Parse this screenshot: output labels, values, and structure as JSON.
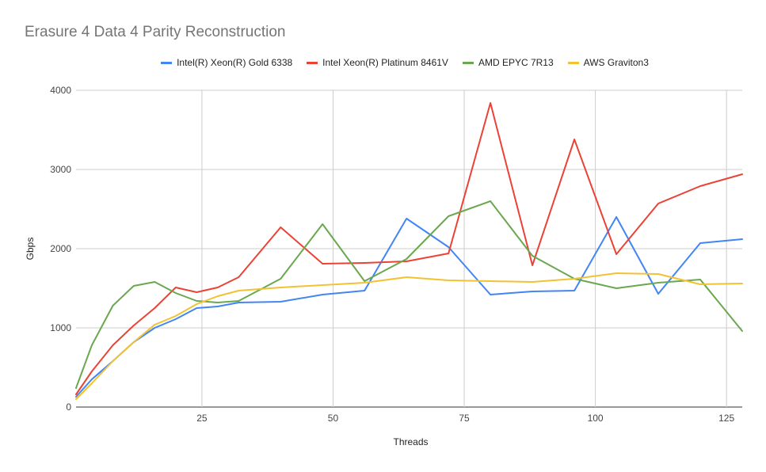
{
  "chart_data": {
    "type": "line",
    "title": "Erasure 4 Data 4 Parity Reconstruction",
    "xlabel": "Threads",
    "ylabel": "Gbps",
    "xlim": [
      1,
      128
    ],
    "ylim": [
      0,
      4000
    ],
    "x_ticks": [
      25,
      50,
      75,
      100,
      125
    ],
    "y_ticks": [
      0,
      1000,
      2000,
      3000,
      4000
    ],
    "grid": true,
    "legend_position": "top",
    "series": [
      {
        "name": "Intel(R) Xeon(R) Gold 6338",
        "color": "#4285F4",
        "points": [
          [
            1,
            130
          ],
          [
            4,
            350
          ],
          [
            8,
            580
          ],
          [
            12,
            820
          ],
          [
            16,
            1000
          ],
          [
            20,
            1110
          ],
          [
            24,
            1250
          ],
          [
            28,
            1270
          ],
          [
            32,
            1320
          ],
          [
            40,
            1330
          ],
          [
            48,
            1420
          ],
          [
            56,
            1470
          ],
          [
            64,
            2380
          ],
          [
            72,
            2020
          ],
          [
            80,
            1420
          ],
          [
            88,
            1460
          ],
          [
            96,
            1470
          ],
          [
            104,
            2400
          ],
          [
            112,
            1430
          ],
          [
            120,
            2070
          ],
          [
            128,
            2120
          ]
        ]
      },
      {
        "name": "Intel Xeon(R) Platinum 8461V",
        "color": "#EA4335",
        "points": [
          [
            1,
            160
          ],
          [
            4,
            450
          ],
          [
            8,
            780
          ],
          [
            12,
            1030
          ],
          [
            16,
            1250
          ],
          [
            20,
            1510
          ],
          [
            24,
            1450
          ],
          [
            28,
            1510
          ],
          [
            32,
            1640
          ],
          [
            40,
            2270
          ],
          [
            48,
            1810
          ],
          [
            56,
            1820
          ],
          [
            64,
            1840
          ],
          [
            72,
            1940
          ],
          [
            80,
            3840
          ],
          [
            88,
            1790
          ],
          [
            96,
            3380
          ],
          [
            104,
            1930
          ],
          [
            112,
            2570
          ],
          [
            120,
            2790
          ],
          [
            128,
            2940
          ]
        ]
      },
      {
        "name": "AMD EPYC 7R13",
        "color": "#6AA84F",
        "points": [
          [
            1,
            240
          ],
          [
            4,
            780
          ],
          [
            8,
            1280
          ],
          [
            12,
            1530
          ],
          [
            16,
            1580
          ],
          [
            20,
            1440
          ],
          [
            24,
            1340
          ],
          [
            28,
            1320
          ],
          [
            32,
            1340
          ],
          [
            40,
            1620
          ],
          [
            48,
            2310
          ],
          [
            56,
            1590
          ],
          [
            64,
            1870
          ],
          [
            72,
            2410
          ],
          [
            80,
            2600
          ],
          [
            88,
            1910
          ],
          [
            96,
            1620
          ],
          [
            104,
            1500
          ],
          [
            112,
            1570
          ],
          [
            120,
            1610
          ],
          [
            128,
            960
          ]
        ]
      },
      {
        "name": "AWS Graviton3",
        "color": "#F1C232",
        "points": [
          [
            1,
            100
          ],
          [
            4,
            300
          ],
          [
            8,
            580
          ],
          [
            12,
            820
          ],
          [
            16,
            1040
          ],
          [
            20,
            1150
          ],
          [
            24,
            1300
          ],
          [
            28,
            1400
          ],
          [
            32,
            1470
          ],
          [
            40,
            1510
          ],
          [
            48,
            1540
          ],
          [
            56,
            1570
          ],
          [
            64,
            1640
          ],
          [
            72,
            1600
          ],
          [
            80,
            1590
          ],
          [
            88,
            1580
          ],
          [
            96,
            1620
          ],
          [
            104,
            1690
          ],
          [
            112,
            1680
          ],
          [
            120,
            1550
          ],
          [
            128,
            1560
          ]
        ]
      }
    ]
  }
}
